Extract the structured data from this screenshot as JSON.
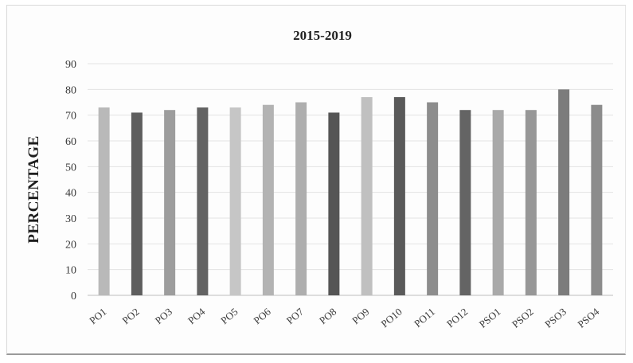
{
  "chart_data": {
    "type": "bar",
    "title": "2015-2019",
    "xlabel": "",
    "ylabel": "PERCENTAGE",
    "ylim": [
      0,
      90
    ],
    "yticks": [
      0,
      10,
      20,
      30,
      40,
      50,
      60,
      70,
      80,
      90
    ],
    "grid": true,
    "categories": [
      "PO1",
      "PO2",
      "PO3",
      "PO4",
      "PO5",
      "PO6",
      "PO7",
      "PO8",
      "PO9",
      "PO10",
      "PO11",
      "PO12",
      "PSO1",
      "PSO2",
      "PSO3",
      "PSO4"
    ],
    "values": [
      73,
      71,
      72,
      73,
      73,
      74,
      75,
      71,
      77,
      77,
      75,
      72,
      72,
      72,
      80,
      74
    ],
    "bar_colors": [
      "#b9b9b9",
      "#5e5e5e",
      "#9d9d9d",
      "#636363",
      "#c6c6c6",
      "#b3b3b3",
      "#aeaeae",
      "#555555",
      "#c0c0c0",
      "#5a5a5a",
      "#8d8d8d",
      "#646464",
      "#a9a9a9",
      "#979797",
      "#7c7c7c",
      "#8c8c8c"
    ]
  }
}
